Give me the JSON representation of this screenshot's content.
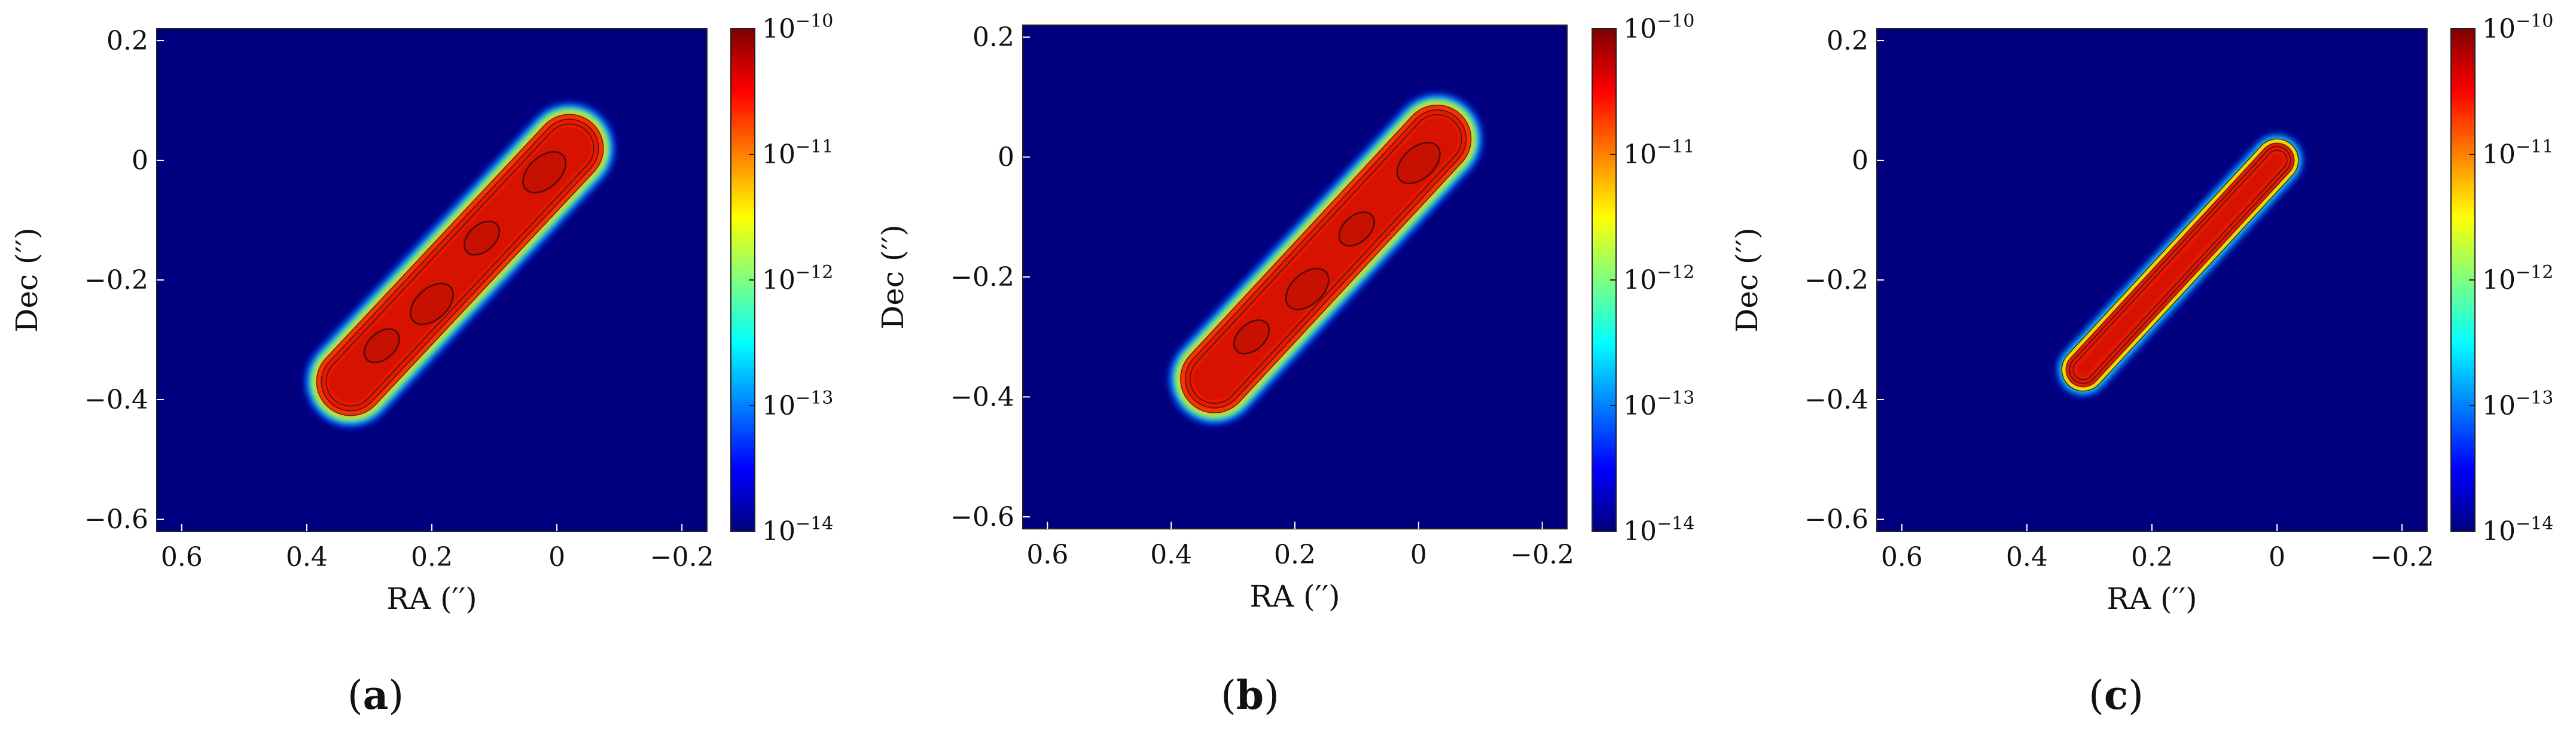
{
  "figure": {
    "panels": [
      {
        "label_open": "(",
        "label_letter": "a",
        "label_close": ")"
      },
      {
        "label_open": "(",
        "label_letter": "b",
        "label_close": ")"
      },
      {
        "label_open": "(",
        "label_letter": "c",
        "label_close": ")"
      }
    ]
  },
  "chart_data": [
    {
      "type": "heatmap",
      "panel": "a",
      "xlabel": "RA (′′)",
      "ylabel": "Dec (′′)",
      "xlim": [
        0.64,
        -0.24
      ],
      "ylim": [
        -0.62,
        0.22
      ],
      "x_ticks": [
        0.6,
        0.4,
        0.2,
        0,
        -0.2
      ],
      "x_tick_labels": [
        "0.6",
        "0.4",
        "0.2",
        "0",
        "−0.2"
      ],
      "y_ticks": [
        0.2,
        0,
        -0.2,
        -0.4,
        -0.6
      ],
      "y_tick_labels": [
        "0.2",
        "0",
        "−0.2",
        "−0.4",
        "−0.6"
      ],
      "colorbar": {
        "scale": "log",
        "range": [
          1e-14,
          1e-10
        ],
        "colormap": "jet",
        "tick_base": "10",
        "tick_exponents": [
          "−10",
          "−11",
          "−12",
          "−13",
          "−14"
        ]
      },
      "structure": {
        "kind": "elongated elliptical emission ridge",
        "from": [
          0.33,
          -0.37
        ],
        "to": [
          -0.02,
          0.02
        ],
        "peak": 1e-10,
        "background": 1e-14,
        "blobs": [
          [
            0.28,
            -0.31
          ],
          [
            0.2,
            -0.24
          ],
          [
            0.12,
            -0.13
          ],
          [
            0.02,
            -0.02
          ]
        ],
        "contours": true
      },
      "grid": false
    },
    {
      "type": "heatmap",
      "panel": "b",
      "xlabel": "RA (′′)",
      "ylabel": "Dec (′′)",
      "xlim": [
        0.64,
        -0.24
      ],
      "ylim": [
        -0.62,
        0.22
      ],
      "x_ticks": [
        0.6,
        0.4,
        0.2,
        0,
        -0.2
      ],
      "x_tick_labels": [
        "0.6",
        "0.4",
        "0.2",
        "0",
        "−0.2"
      ],
      "y_ticks": [
        0.2,
        0,
        -0.2,
        -0.4,
        -0.6
      ],
      "y_tick_labels": [
        "0.2",
        "0",
        "−0.2",
        "−0.4",
        "−0.6"
      ],
      "colorbar": {
        "scale": "log",
        "range": [
          1e-14,
          1e-10
        ],
        "colormap": "jet",
        "tick_base": "10",
        "tick_exponents": [
          "−10",
          "−11",
          "−12",
          "−13",
          "−14"
        ]
      },
      "structure": {
        "kind": "elongated elliptical emission ridge",
        "from": [
          0.33,
          -0.37
        ],
        "to": [
          -0.03,
          0.03
        ],
        "peak": 1e-10,
        "background": 1e-14,
        "blobs": [
          [
            0.27,
            -0.3
          ],
          [
            0.18,
            -0.22
          ],
          [
            0.1,
            -0.12
          ],
          [
            0.0,
            -0.01
          ]
        ],
        "contours": true
      },
      "grid": false
    },
    {
      "type": "heatmap",
      "panel": "c",
      "xlabel": "RA (′′)",
      "ylabel": "Dec (′′)",
      "xlim": [
        0.64,
        -0.24
      ],
      "ylim": [
        -0.62,
        0.22
      ],
      "x_ticks": [
        0.6,
        0.4,
        0.2,
        0,
        -0.2
      ],
      "x_tick_labels": [
        "0.6",
        "0.4",
        "0.2",
        "0",
        "−0.2"
      ],
      "y_ticks": [
        0.2,
        0,
        -0.2,
        -0.4,
        -0.6
      ],
      "y_tick_labels": [
        "0.2",
        "0",
        "−0.2",
        "−0.4",
        "−0.6"
      ],
      "colorbar": {
        "scale": "log",
        "range": [
          1e-14,
          1e-10
        ],
        "colormap": "jet",
        "tick_base": "10",
        "tick_exponents": [
          "−10",
          "−11",
          "−12",
          "−13",
          "−14"
        ]
      },
      "structure": {
        "kind": "smooth narrow emission ridge",
        "from": [
          0.31,
          -0.35
        ],
        "to": [
          0.0,
          0.0
        ],
        "peak": 1e-10,
        "background": 1e-14,
        "blobs": [],
        "contours": true
      },
      "grid": false
    }
  ]
}
